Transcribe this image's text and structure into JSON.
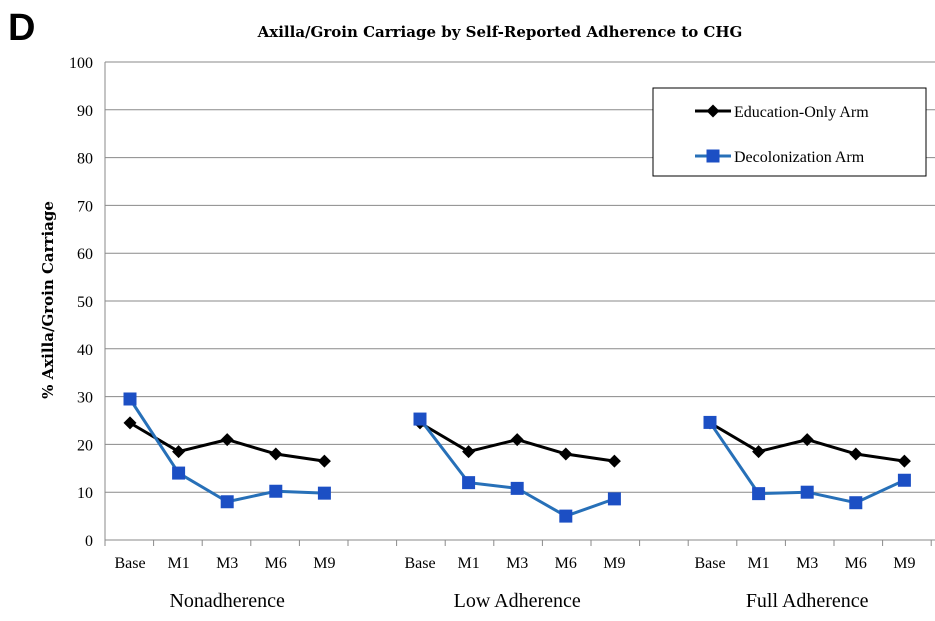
{
  "panel_letter": "D",
  "chart_data": {
    "type": "line",
    "title": "Axilla/Groin Carriage by Self-Reported Adherence to CHG",
    "xlabel": "",
    "ylabel": "% Axilla/Groin Carriage",
    "ylim": [
      0,
      100
    ],
    "yticks": [
      0,
      10,
      20,
      30,
      40,
      50,
      60,
      70,
      80,
      90,
      100
    ],
    "grid": true,
    "legend_position": "top-right",
    "groups": [
      {
        "label": "Nonadherence",
        "categories": [
          "Base",
          "M1",
          "M3",
          "M6",
          "M9"
        ],
        "series": [
          {
            "name": "Education-Only Arm",
            "values": [
              24.5,
              18.5,
              21,
              18,
              16.5
            ]
          },
          {
            "name": "Decolonization Arm",
            "values": [
              29.5,
              14,
              8,
              10.2,
              9.8
            ]
          }
        ]
      },
      {
        "label": "Low Adherence",
        "categories": [
          "Base",
          "M1",
          "M3",
          "M6",
          "M9"
        ],
        "series": [
          {
            "name": "Education-Only Arm",
            "values": [
              24.5,
              18.5,
              21,
              18,
              16.5
            ]
          },
          {
            "name": "Decolonization Arm",
            "values": [
              25.3,
              12,
              10.8,
              5,
              8.6
            ]
          }
        ]
      },
      {
        "label": "Full Adherence",
        "categories": [
          "Base",
          "M1",
          "M3",
          "M6",
          "M9"
        ],
        "series": [
          {
            "name": "Education-Only Arm",
            "values": [
              24.5,
              18.5,
              21,
              18,
              16.5
            ]
          },
          {
            "name": "Decolonization Arm",
            "values": [
              24.6,
              9.7,
              10,
              7.8,
              12.5
            ]
          }
        ]
      }
    ],
    "series_styles": [
      {
        "name": "Education-Only Arm",
        "color": "#000000",
        "marker": "diamond"
      },
      {
        "name": "Decolonization Arm",
        "color": "#2770b8",
        "marker": "square",
        "marker_color": "#1c4fc4"
      }
    ]
  }
}
